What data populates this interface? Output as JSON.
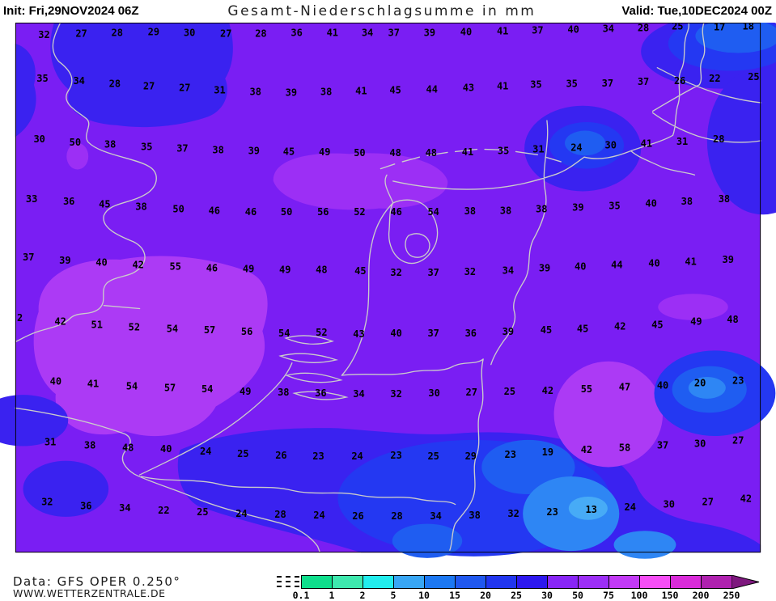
{
  "header": {
    "init_label": "Init: Fri,29NOV2024 06Z",
    "title": "Gesamt-Niederschlagsumme in mm",
    "valid_label": "Valid: Tue,10DEC2024 00Z"
  },
  "footer": {
    "data_source": "Data: GFS OPER 0.250°",
    "website": "WWW.WETTERZENTRALE.DE"
  },
  "legend": {
    "ticks": [
      "0.1",
      "1",
      "2",
      "5",
      "10",
      "15",
      "20",
      "25",
      "30",
      "50",
      "75",
      "100",
      "150",
      "200",
      "250"
    ],
    "segments": [
      "#0FDE8C",
      "#3EE8AE",
      "#22EDED",
      "#38A6F4",
      "#1C78F2",
      "#2058EE",
      "#2136EF",
      "#2D18EF",
      "#8826F6",
      "#9C2FF6",
      "#C23AF6",
      "#F64EF6",
      "#D92BD9",
      "#AF21AF"
    ],
    "overflow_color": "#7E187E"
  },
  "palette": {
    "bin_30_50": "#7A1EF3",
    "bin_50_75": "#9C2FF5",
    "bin_50_75b": "#AC3AF5",
    "bin_25_30": "#3A22F0",
    "bin_20_25": "#2438F2",
    "bin_15_20": "#1F5DF1",
    "bin_10_15": "#2E86F4",
    "bin_5_10": "#47ABF6",
    "coast": "#CBCBCB",
    "border": "#000000"
  },
  "map": {
    "unit": "mm",
    "grid_values": [
      [
        37,
        44,
        "32"
      ],
      [
        85,
        42,
        "27"
      ],
      [
        131,
        41,
        "28"
      ],
      [
        178,
        40,
        "29"
      ],
      [
        224,
        41,
        "30"
      ],
      [
        271,
        42,
        "27"
      ],
      [
        316,
        42,
        "28"
      ],
      [
        362,
        41,
        "36"
      ],
      [
        408,
        41,
        "41"
      ],
      [
        453,
        41,
        "34"
      ],
      [
        487,
        41,
        "37"
      ],
      [
        533,
        41,
        "39"
      ],
      [
        580,
        40,
        "40"
      ],
      [
        627,
        39,
        "41"
      ],
      [
        672,
        38,
        "37"
      ],
      [
        718,
        37,
        "40"
      ],
      [
        763,
        36,
        "34"
      ],
      [
        808,
        35,
        "28"
      ],
      [
        852,
        33,
        "25"
      ],
      [
        906,
        34,
        "17"
      ],
      [
        943,
        33,
        "18"
      ],
      [
        35,
        100,
        "35"
      ],
      [
        82,
        103,
        "34"
      ],
      [
        128,
        107,
        "28"
      ],
      [
        172,
        110,
        "27"
      ],
      [
        218,
        112,
        "27"
      ],
      [
        263,
        115,
        "31"
      ],
      [
        309,
        117,
        "38"
      ],
      [
        355,
        118,
        "39"
      ],
      [
        400,
        117,
        "38"
      ],
      [
        445,
        116,
        "41"
      ],
      [
        489,
        115,
        "45"
      ],
      [
        536,
        114,
        "44"
      ],
      [
        583,
        112,
        "43"
      ],
      [
        627,
        110,
        "41"
      ],
      [
        670,
        108,
        "35"
      ],
      [
        716,
        107,
        "35"
      ],
      [
        762,
        106,
        "37"
      ],
      [
        808,
        104,
        "37"
      ],
      [
        855,
        103,
        "26"
      ],
      [
        900,
        100,
        "22"
      ],
      [
        950,
        98,
        "25"
      ],
      [
        31,
        178,
        "30"
      ],
      [
        77,
        182,
        "50"
      ],
      [
        122,
        185,
        "38"
      ],
      [
        169,
        188,
        "35"
      ],
      [
        215,
        190,
        "37"
      ],
      [
        261,
        192,
        "38"
      ],
      [
        307,
        193,
        "39"
      ],
      [
        352,
        194,
        "45"
      ],
      [
        398,
        195,
        "49"
      ],
      [
        443,
        196,
        "50"
      ],
      [
        489,
        196,
        "48"
      ],
      [
        535,
        196,
        "48"
      ],
      [
        582,
        195,
        "41"
      ],
      [
        628,
        193,
        "35"
      ],
      [
        673,
        191,
        "31"
      ],
      [
        722,
        189,
        "24"
      ],
      [
        766,
        186,
        "30"
      ],
      [
        812,
        184,
        "41"
      ],
      [
        858,
        181,
        "31"
      ],
      [
        905,
        178,
        "28"
      ],
      [
        21,
        255,
        "33"
      ],
      [
        69,
        258,
        "36"
      ],
      [
        115,
        262,
        "45"
      ],
      [
        162,
        265,
        "38"
      ],
      [
        210,
        268,
        "50"
      ],
      [
        256,
        270,
        "46"
      ],
      [
        303,
        272,
        "46"
      ],
      [
        349,
        272,
        "50"
      ],
      [
        396,
        272,
        "56"
      ],
      [
        443,
        272,
        "52"
      ],
      [
        490,
        272,
        "46"
      ],
      [
        538,
        272,
        "54"
      ],
      [
        585,
        271,
        "38"
      ],
      [
        631,
        270,
        "38"
      ],
      [
        677,
        268,
        "38"
      ],
      [
        724,
        266,
        "39"
      ],
      [
        771,
        264,
        "35"
      ],
      [
        818,
        261,
        "40"
      ],
      [
        864,
        258,
        "38"
      ],
      [
        912,
        255,
        "38"
      ],
      [
        17,
        330,
        "37"
      ],
      [
        64,
        334,
        "39"
      ],
      [
        111,
        337,
        "40"
      ],
      [
        158,
        340,
        "42"
      ],
      [
        206,
        342,
        "55"
      ],
      [
        253,
        344,
        "46"
      ],
      [
        300,
        345,
        "49"
      ],
      [
        347,
        346,
        "49"
      ],
      [
        394,
        346,
        "48"
      ],
      [
        444,
        348,
        "45"
      ],
      [
        490,
        350,
        "32"
      ],
      [
        538,
        350,
        "37"
      ],
      [
        585,
        349,
        "32"
      ],
      [
        634,
        347,
        "34"
      ],
      [
        681,
        344,
        "39"
      ],
      [
        727,
        342,
        "40"
      ],
      [
        774,
        340,
        "44"
      ],
      [
        822,
        338,
        "40"
      ],
      [
        869,
        336,
        "41"
      ],
      [
        917,
        333,
        "39"
      ],
      [
        6,
        408,
        "2"
      ],
      [
        58,
        413,
        "42"
      ],
      [
        105,
        417,
        "51"
      ],
      [
        153,
        420,
        "52"
      ],
      [
        202,
        422,
        "54"
      ],
      [
        250,
        424,
        "57"
      ],
      [
        298,
        426,
        "56"
      ],
      [
        346,
        428,
        "54"
      ],
      [
        394,
        427,
        "52"
      ],
      [
        442,
        429,
        "43"
      ],
      [
        490,
        428,
        "40"
      ],
      [
        538,
        428,
        "37"
      ],
      [
        586,
        428,
        "36"
      ],
      [
        634,
        426,
        "39"
      ],
      [
        683,
        424,
        "45"
      ],
      [
        730,
        422,
        "45"
      ],
      [
        778,
        419,
        "42"
      ],
      [
        826,
        417,
        "45"
      ],
      [
        876,
        413,
        "49"
      ],
      [
        923,
        410,
        "48"
      ],
      [
        52,
        490,
        "40"
      ],
      [
        100,
        493,
        "41"
      ],
      [
        150,
        496,
        "54"
      ],
      [
        199,
        498,
        "57"
      ],
      [
        247,
        500,
        "54"
      ],
      [
        296,
        503,
        "49"
      ],
      [
        345,
        504,
        "38"
      ],
      [
        393,
        505,
        "36"
      ],
      [
        442,
        506,
        "34"
      ],
      [
        490,
        506,
        "32"
      ],
      [
        539,
        505,
        "30"
      ],
      [
        587,
        504,
        "27"
      ],
      [
        636,
        503,
        "25"
      ],
      [
        685,
        502,
        "42"
      ],
      [
        735,
        500,
        "55"
      ],
      [
        784,
        497,
        "47"
      ],
      [
        833,
        495,
        "40"
      ],
      [
        881,
        492,
        "20"
      ],
      [
        930,
        489,
        "23"
      ],
      [
        45,
        568,
        "31"
      ],
      [
        96,
        572,
        "38"
      ],
      [
        145,
        575,
        "48"
      ],
      [
        194,
        577,
        "40"
      ],
      [
        245,
        580,
        "24"
      ],
      [
        293,
        583,
        "25"
      ],
      [
        342,
        585,
        "26"
      ],
      [
        390,
        586,
        "23"
      ],
      [
        440,
        586,
        "24"
      ],
      [
        490,
        585,
        "23"
      ],
      [
        538,
        586,
        "25"
      ],
      [
        586,
        586,
        "29"
      ],
      [
        637,
        584,
        "23"
      ],
      [
        685,
        581,
        "19"
      ],
      [
        735,
        578,
        "42"
      ],
      [
        784,
        575,
        "58"
      ],
      [
        833,
        572,
        "37"
      ],
      [
        881,
        570,
        "30"
      ],
      [
        930,
        566,
        "27"
      ],
      [
        41,
        645,
        "32"
      ],
      [
        91,
        650,
        "36"
      ],
      [
        141,
        653,
        "34"
      ],
      [
        191,
        656,
        "22"
      ],
      [
        241,
        658,
        "25"
      ],
      [
        291,
        660,
        "24"
      ],
      [
        341,
        661,
        "28"
      ],
      [
        391,
        662,
        "24"
      ],
      [
        441,
        663,
        "26"
      ],
      [
        491,
        663,
        "28"
      ],
      [
        541,
        663,
        "34"
      ],
      [
        591,
        662,
        "38"
      ],
      [
        641,
        660,
        "32"
      ],
      [
        691,
        658,
        "23"
      ],
      [
        741,
        655,
        "13"
      ],
      [
        791,
        652,
        "24"
      ],
      [
        841,
        648,
        "30"
      ],
      [
        891,
        645,
        "27"
      ],
      [
        940,
        641,
        "42"
      ]
    ]
  }
}
